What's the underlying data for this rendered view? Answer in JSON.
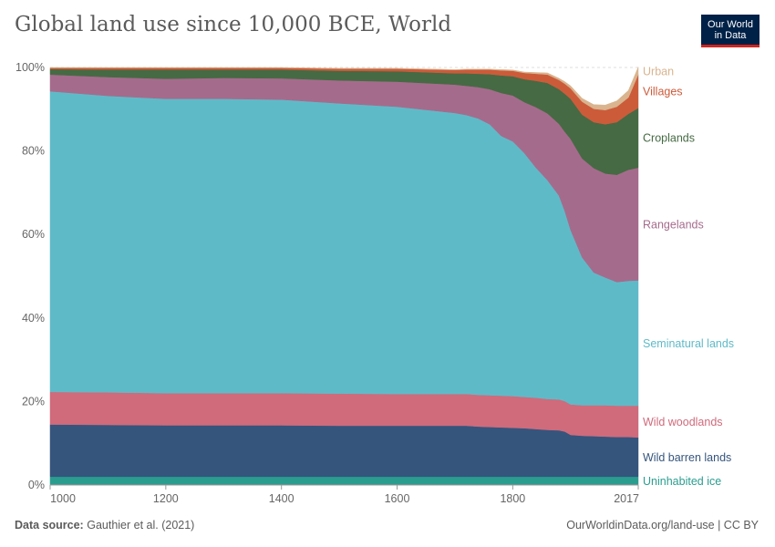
{
  "header": {
    "title": "Global land use since 10,000 BCE, World",
    "logo_line1": "Our World",
    "logo_line2": "in Data"
  },
  "footer": {
    "source_label": "Data source:",
    "source_text": "Gauthier et al. (2021)",
    "url_text": "OurWorldinData.org/land-use | CC BY"
  },
  "colors": {
    "uninhabited_ice": "#2a9d8f",
    "wild_barren": "#35557d",
    "wild_woodlands": "#cf6b7b",
    "seminatural": "#5fbac8",
    "rangelands": "#a56b8c",
    "croplands": "#466a43",
    "villages": "#cc5b3a",
    "urban": "#d9b48e"
  },
  "chart_data": {
    "type": "area",
    "stacked": true,
    "title": "Global land use since 10,000 BCE, World",
    "xlabel": "",
    "ylabel": "",
    "xlim": [
      1000,
      2017
    ],
    "ylim": [
      0,
      100
    ],
    "x_ticks": [
      "1000",
      "1200",
      "1400",
      "1600",
      "1800",
      "2017"
    ],
    "x_tick_values": [
      1000,
      1200,
      1400,
      1600,
      1800,
      2017
    ],
    "y_ticks": [
      "0%",
      "20%",
      "40%",
      "60%",
      "80%",
      "100%"
    ],
    "y_tick_values": [
      0,
      20,
      40,
      60,
      80,
      100
    ],
    "x": [
      1000,
      1100,
      1200,
      1300,
      1400,
      1500,
      1600,
      1700,
      1720,
      1740,
      1760,
      1780,
      1800,
      1820,
      1840,
      1860,
      1880,
      1890,
      1900,
      1920,
      1940,
      1960,
      1980,
      2000,
      2017
    ],
    "series": [
      {
        "name": "Uninhabited ice",
        "color_key": "uninhabited_ice",
        "values": [
          2,
          2,
          2,
          2,
          2,
          2,
          2,
          2,
          2,
          2,
          2,
          2,
          2,
          2,
          2,
          2,
          2,
          2,
          2,
          2,
          2,
          2,
          2,
          2,
          2
        ]
      },
      {
        "name": "Wild barren lands",
        "color_key": "wild_barren",
        "values": [
          12.5,
          12.4,
          12.3,
          12.3,
          12.3,
          12.2,
          12.2,
          12.2,
          12.2,
          12.0,
          11.9,
          11.8,
          11.7,
          11.6,
          11.4,
          11.2,
          11.1,
          10.8,
          10.0,
          9.8,
          9.7,
          9.6,
          9.5,
          9.5,
          9.4
        ]
      },
      {
        "name": "Wild woodlands",
        "color_key": "wild_woodlands",
        "values": [
          7.8,
          7.8,
          7.7,
          7.7,
          7.7,
          7.7,
          7.6,
          7.6,
          7.6,
          7.6,
          7.6,
          7.6,
          7.6,
          7.5,
          7.5,
          7.4,
          7.4,
          7.3,
          7.3,
          7.3,
          7.4,
          7.5,
          7.5,
          7.5,
          7.6
        ]
      },
      {
        "name": "Seminatural lands",
        "color_key": "seminatural",
        "values": [
          72.0,
          71.0,
          70.5,
          70.5,
          70.3,
          69.5,
          68.8,
          67.3,
          66.8,
          66.2,
          64.9,
          62.2,
          61.0,
          58.4,
          55.1,
          52.4,
          48.8,
          45.5,
          41.8,
          35.4,
          31.8,
          30.6,
          29.6,
          29.9,
          30.0
        ]
      },
      {
        "name": "Rangelands",
        "color_key": "rangelands",
        "values": [
          4.0,
          4.5,
          4.8,
          5.0,
          5.1,
          5.5,
          6.0,
          6.8,
          7.0,
          7.5,
          8.4,
          10.3,
          11.0,
          12.2,
          14.5,
          16.0,
          17.2,
          19.0,
          21.8,
          23.7,
          25.0,
          24.9,
          25.7,
          26.6,
          27.0
        ]
      },
      {
        "name": "Croplands",
        "color_key": "croplands",
        "values": [
          1.3,
          1.8,
          2.2,
          2.0,
          2.1,
          2.3,
          2.5,
          2.7,
          3.0,
          3.2,
          3.6,
          4.2,
          4.6,
          5.5,
          6.3,
          7.3,
          8.3,
          9.1,
          9.6,
          10.5,
          11.0,
          11.8,
          12.6,
          13.4,
          14.3
        ]
      },
      {
        "name": "Villages",
        "color_key": "villages",
        "values": [
          0.3,
          0.4,
          0.4,
          0.4,
          0.4,
          0.5,
          0.6,
          0.8,
          0.9,
          1.0,
          1.1,
          1.2,
          1.3,
          1.5,
          1.7,
          2.0,
          2.2,
          2.4,
          2.5,
          3.1,
          3.2,
          3.4,
          3.7,
          3.9,
          8.0
        ]
      },
      {
        "name": "Urban",
        "color_key": "urban",
        "values": [
          0.1,
          0.1,
          0.1,
          0.1,
          0.1,
          0.1,
          0.1,
          0.1,
          0.1,
          0.1,
          0.1,
          0.2,
          0.2,
          0.2,
          0.3,
          0.4,
          0.4,
          0.5,
          0.6,
          0.8,
          1.0,
          1.2,
          1.4,
          1.7,
          1.8
        ]
      }
    ]
  }
}
